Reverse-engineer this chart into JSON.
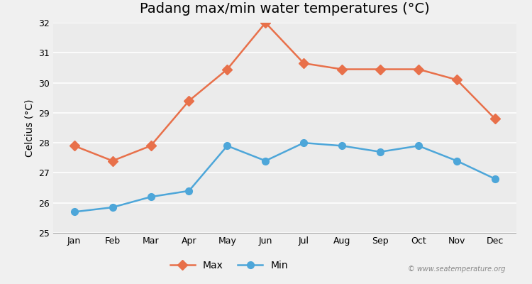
{
  "title": "Padang max/min water temperatures (°C)",
  "ylabel": "Celcius (°C)",
  "months": [
    "Jan",
    "Feb",
    "Mar",
    "Apr",
    "May",
    "Jun",
    "Jul",
    "Aug",
    "Sep",
    "Oct",
    "Nov",
    "Dec"
  ],
  "max_temps": [
    27.9,
    27.4,
    27.9,
    29.4,
    30.45,
    32.0,
    30.65,
    30.45,
    30.45,
    30.45,
    30.1,
    28.8
  ],
  "min_temps": [
    25.7,
    25.85,
    26.2,
    26.4,
    27.9,
    27.4,
    28.0,
    27.9,
    27.7,
    27.9,
    27.4,
    26.8
  ],
  "max_color": "#e8704a",
  "min_color": "#4da6d9",
  "bg_color": "#f0f0f0",
  "plot_bg_color": "#ebebeb",
  "grid_color": "#ffffff",
  "ylim": [
    25,
    32
  ],
  "yticks": [
    25,
    26,
    27,
    28,
    29,
    30,
    31,
    32
  ],
  "watermark": "© www.seatemperature.org",
  "legend_max": "Max",
  "legend_min": "Min",
  "title_fontsize": 14,
  "label_fontsize": 10,
  "tick_fontsize": 9
}
